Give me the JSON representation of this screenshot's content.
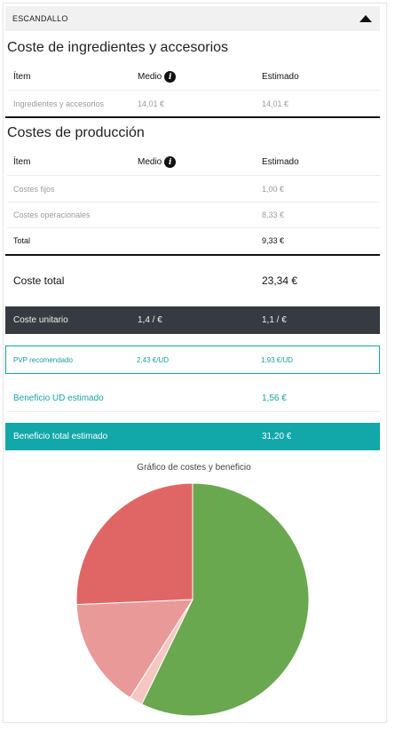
{
  "header": {
    "title": "ESCANDALLO"
  },
  "ingredients": {
    "title": "Coste de ingredientes y accesorios",
    "columns": [
      "Ítem",
      "Medio",
      "Estimado"
    ],
    "rows": [
      {
        "item": "Ingredientes y accesorios",
        "medio": "14,01 €",
        "estimado": "14,01 €"
      }
    ]
  },
  "production": {
    "title": "Costes de producción",
    "columns": [
      "Ítem",
      "Medio",
      "Estimado"
    ],
    "rows": [
      {
        "item": "Costes fijos",
        "medio": "",
        "estimado": "1,00 €"
      },
      {
        "item": "Costes operacionales",
        "medio": "",
        "estimado": "8,33 €"
      }
    ],
    "total": {
      "label": "Total",
      "estimado": "9,33 €"
    }
  },
  "coste_total": {
    "label": "Coste total",
    "value": "23,34 €"
  },
  "coste_unitario": {
    "label": "Coste unitario",
    "medio": "1,4 / €",
    "estimado": "1,1 / €"
  },
  "pvp": {
    "label": "PVP recomendado",
    "medio": "2,43 €/UD",
    "estimado": "1,93 €/UD"
  },
  "beneficio_ud": {
    "label": "Beneficio UD estimado",
    "value": "1,56 €"
  },
  "beneficio_total": {
    "label": "Beneficio total estimado",
    "value": "31,20 €"
  },
  "chart_data": {
    "type": "pie",
    "title": "Gráfico de costes y beneficio",
    "slices": [
      {
        "value": 31.2,
        "color": "#6aa84f"
      },
      {
        "value": 1.0,
        "color": "#f4c7c3"
      },
      {
        "value": 8.33,
        "color": "#ea9999"
      },
      {
        "value": 14.01,
        "color": "#e06666"
      }
    ]
  }
}
